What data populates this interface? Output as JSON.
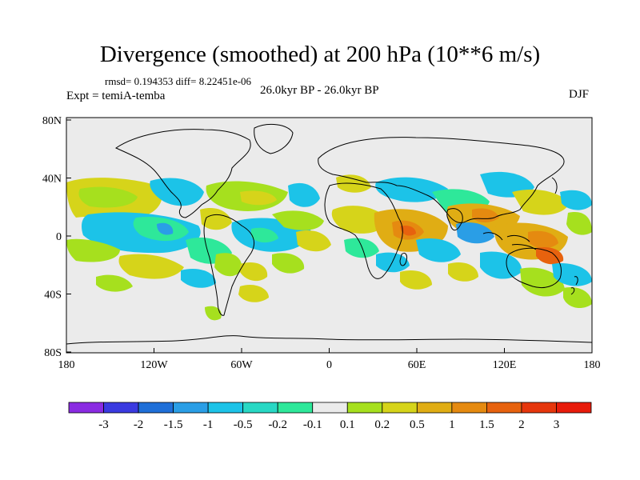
{
  "title": "Divergence (smoothed) at 200 hPa (10**6 m/s)",
  "stats": "rmsd= 0.194353 diff= 8.22451e-06",
  "experiment": "Expt = temiA-temba",
  "period": "26.0kyr BP - 26.0kyr BP",
  "season": "DJF",
  "axes": {
    "y_ticks": [
      "80N",
      "40N",
      "0",
      "40S",
      "80S"
    ],
    "x_ticks": [
      "180",
      "120W",
      "60W",
      "0",
      "60E",
      "120E",
      "180"
    ]
  },
  "colorbar": {
    "labels": [
      "-3",
      "-2",
      "-1.5",
      "-1",
      "-0.5",
      "-0.2",
      "-0.1",
      "0.1",
      "0.2",
      "0.5",
      "1",
      "1.5",
      "2",
      "3"
    ],
    "colors": [
      "#8a2be2",
      "#3a3ae0",
      "#1f6fd8",
      "#2a9ee6",
      "#1cc3e8",
      "#28d8c4",
      "#2ee89a",
      "#ebebeb",
      "#a6e01e",
      "#d6d41a",
      "#e0ad14",
      "#e58a10",
      "#e7620e",
      "#e6360c",
      "#e81b0a"
    ]
  },
  "colors": {
    "background": "#ebebeb",
    "pos1": "#a6e01e",
    "pos2": "#d6d41a",
    "pos3": "#e0ad14",
    "pos4": "#e58a10",
    "pos5": "#e7620e",
    "neg1": "#2ee89a",
    "neg2": "#1cc3e8",
    "neg3": "#2a9ee6"
  }
}
